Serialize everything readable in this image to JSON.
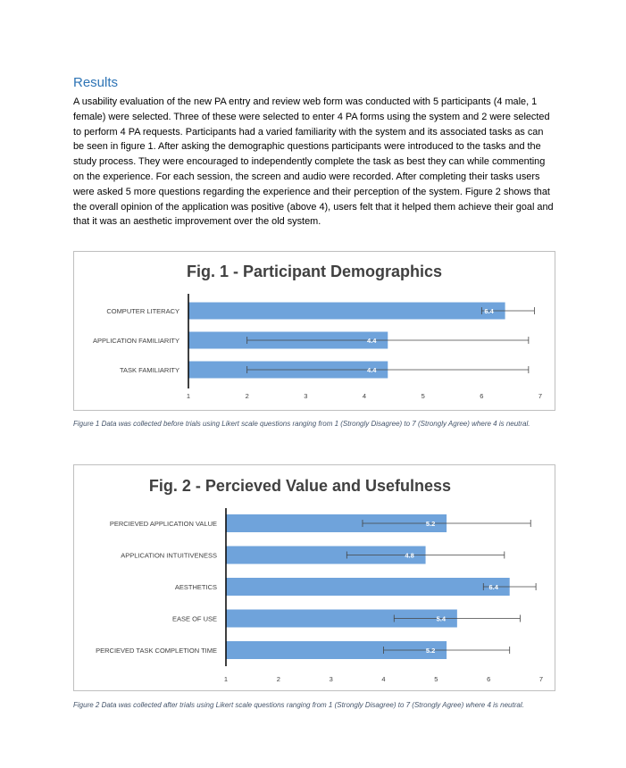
{
  "section": {
    "heading": "Results",
    "paragraph": "A usability evaluation of the new PA entry and review web form was conducted with 5 participants (4 male, 1 female) were selected. Three of these were selected to enter 4 PA forms using the system and 2 were selected to perform 4 PA requests. Participants had a varied familiarity with the system and its associated tasks as can be seen in figure 1. After asking the demographic questions participants were introduced to the tasks and the study process. They were encouraged to independently complete the task as best they can while commenting on the experience. For each session, the screen and audio were recorded. After completing their tasks users were asked 5 more questions regarding the experience and their perception of the system. Figure 2 shows that the overall opinion of the application was positive (above 4), users felt that it helped them achieve their goal and that it was an aesthetic improvement over the old system."
  },
  "chart_data": [
    {
      "type": "bar",
      "orientation": "horizontal",
      "title": "Fig. 1 - Participant Demographics",
      "categories": [
        "COMPUTER LITERACY",
        "APPLICATION FAMILIARITY",
        "TASK FAMILIARITY"
      ],
      "values": [
        6.4,
        4.4,
        4.4
      ],
      "data_labels": [
        "6.4",
        "4.4",
        "4.4"
      ],
      "error_low": [
        6.0,
        2.0,
        2.0
      ],
      "error_high": [
        6.9,
        6.8,
        6.8
      ],
      "xlim": [
        1,
        7
      ],
      "xticks": [
        "1",
        "2",
        "3",
        "4",
        "5",
        "6",
        "7"
      ],
      "bar_color": "#6fa3db",
      "caption": "Figure 1 Data was collected before trials using Likert scale questions ranging from 1 (Strongly Disagree) to 7 (Strongly Agree) where 4 is neutral."
    },
    {
      "type": "bar",
      "orientation": "horizontal",
      "title": "Fig. 2 - Percieved Value and Usefulness",
      "categories": [
        "PERCIEVED APPLICATION VALUE",
        "APPLICATION INTUITIVENESS",
        "AESTHETICS",
        "EASE OF USE",
        "PERCIEVED TASK COMPLETION TIME"
      ],
      "values": [
        5.2,
        4.8,
        6.4,
        5.4,
        5.2
      ],
      "data_labels": [
        "5.2",
        "4.8",
        "6.4",
        "5.4",
        "5.2"
      ],
      "error_low": [
        3.6,
        3.3,
        5.9,
        4.2,
        4.0
      ],
      "error_high": [
        6.8,
        6.3,
        6.9,
        6.6,
        6.4
      ],
      "xlim": [
        1,
        7
      ],
      "xticks": [
        "1",
        "2",
        "3",
        "4",
        "5",
        "6",
        "7"
      ],
      "bar_color": "#6fa3db",
      "caption": "Figure 2 Data was collected after trials using Likert scale questions ranging from 1 (Strongly Disagree) to 7 (Strongly Agree) where 4 is neutral."
    }
  ]
}
